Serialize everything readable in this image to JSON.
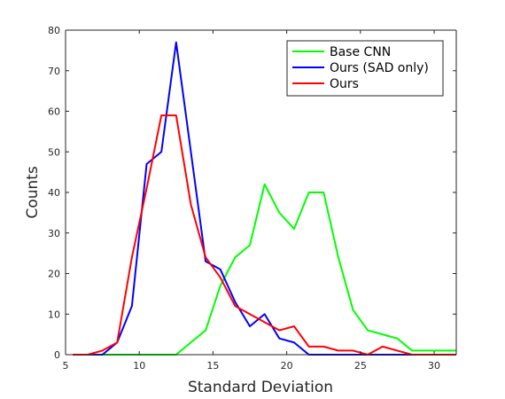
{
  "chart_data": {
    "type": "line",
    "title": "",
    "xlabel": "Standard Deviation",
    "ylabel": "Counts",
    "xlim": [
      5,
      31.5
    ],
    "ylim": [
      0,
      80
    ],
    "xticks": [
      5,
      10,
      15,
      20,
      25,
      30
    ],
    "yticks": [
      0,
      10,
      20,
      30,
      40,
      50,
      60,
      70,
      80
    ],
    "grid": false,
    "legend_position": "top-right",
    "x": [
      5.5,
      6.5,
      7.5,
      8.5,
      9.5,
      10.5,
      11.5,
      12.5,
      13.5,
      14.5,
      15.5,
      16.5,
      17.5,
      18.5,
      19.5,
      20.5,
      21.5,
      22.5,
      23.5,
      24.5,
      25.5,
      26.5,
      27.5,
      28.5,
      29.5,
      30.5,
      31.5
    ],
    "series": [
      {
        "name": "Base CNN",
        "color": "#00ff00",
        "values": [
          0,
          0,
          0,
          0,
          0,
          0,
          0,
          0,
          3,
          6,
          17,
          24,
          27,
          42,
          35,
          31,
          40,
          40,
          24,
          11,
          6,
          5,
          4,
          1,
          1,
          1,
          1
        ]
      },
      {
        "name": "Ours (SAD only)",
        "color": "#0000ff",
        "values": [
          0,
          0,
          0,
          3,
          12,
          47,
          50,
          77,
          50,
          23,
          21,
          13,
          7,
          10,
          4,
          3,
          0,
          0,
          0,
          0,
          0,
          0,
          0,
          0,
          0,
          0,
          0
        ]
      },
      {
        "name": "Ours",
        "color": "#ff0000",
        "values": [
          0,
          0,
          1,
          3,
          24,
          41,
          59,
          59,
          37,
          24,
          19,
          12,
          10,
          8,
          6,
          7,
          2,
          2,
          1,
          1,
          0,
          2,
          1,
          0,
          0,
          0,
          0
        ]
      }
    ]
  }
}
